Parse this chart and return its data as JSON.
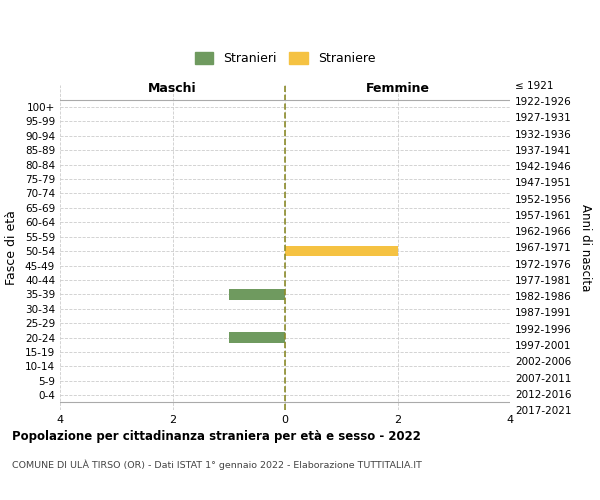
{
  "age_groups": [
    "100+",
    "95-99",
    "90-94",
    "85-89",
    "80-84",
    "75-79",
    "70-74",
    "65-69",
    "60-64",
    "55-59",
    "50-54",
    "45-49",
    "40-44",
    "35-39",
    "30-34",
    "25-29",
    "20-24",
    "15-19",
    "10-14",
    "5-9",
    "0-4"
  ],
  "birth_years": [
    "≤ 1921",
    "1922-1926",
    "1927-1931",
    "1932-1936",
    "1937-1941",
    "1942-1946",
    "1947-1951",
    "1952-1956",
    "1957-1961",
    "1962-1966",
    "1967-1971",
    "1972-1976",
    "1977-1981",
    "1982-1986",
    "1987-1991",
    "1992-1996",
    "1997-2001",
    "2002-2006",
    "2007-2011",
    "2012-2016",
    "2017-2021"
  ],
  "males": [
    0,
    0,
    0,
    0,
    0,
    0,
    0,
    0,
    0,
    0,
    0,
    0,
    0,
    1,
    0,
    0,
    1,
    0,
    0,
    0,
    0
  ],
  "females": [
    0,
    0,
    0,
    0,
    0,
    0,
    0,
    0,
    0,
    0,
    2,
    0,
    0,
    0,
    0,
    0,
    0,
    0,
    0,
    0,
    0
  ],
  "male_color": "#6f9a5f",
  "female_color": "#f5c242",
  "center_line_color": "#8b8b2a",
  "title": "Popolazione per cittadinanza straniera per età e sesso - 2022",
  "subtitle": "COMUNE DI ULÀ TIRSO (OR) - Dati ISTAT 1° gennaio 2022 - Elaborazione TUTTITALIA.IT",
  "ylabel_left": "Fasce di età",
  "ylabel_right": "Anni di nascita",
  "xlabel_left": "Maschi",
  "xlabel_right": "Femmine",
  "legend_male": "Stranieri",
  "legend_female": "Straniere",
  "xlim": [
    -4,
    4
  ],
  "xticks": [
    -4,
    -2,
    0,
    2,
    4
  ],
  "xticklabels": [
    "4",
    "2",
    "0",
    "2",
    "4"
  ],
  "background_color": "#ffffff",
  "grid_color": "#cccccc",
  "bar_height": 0.72
}
